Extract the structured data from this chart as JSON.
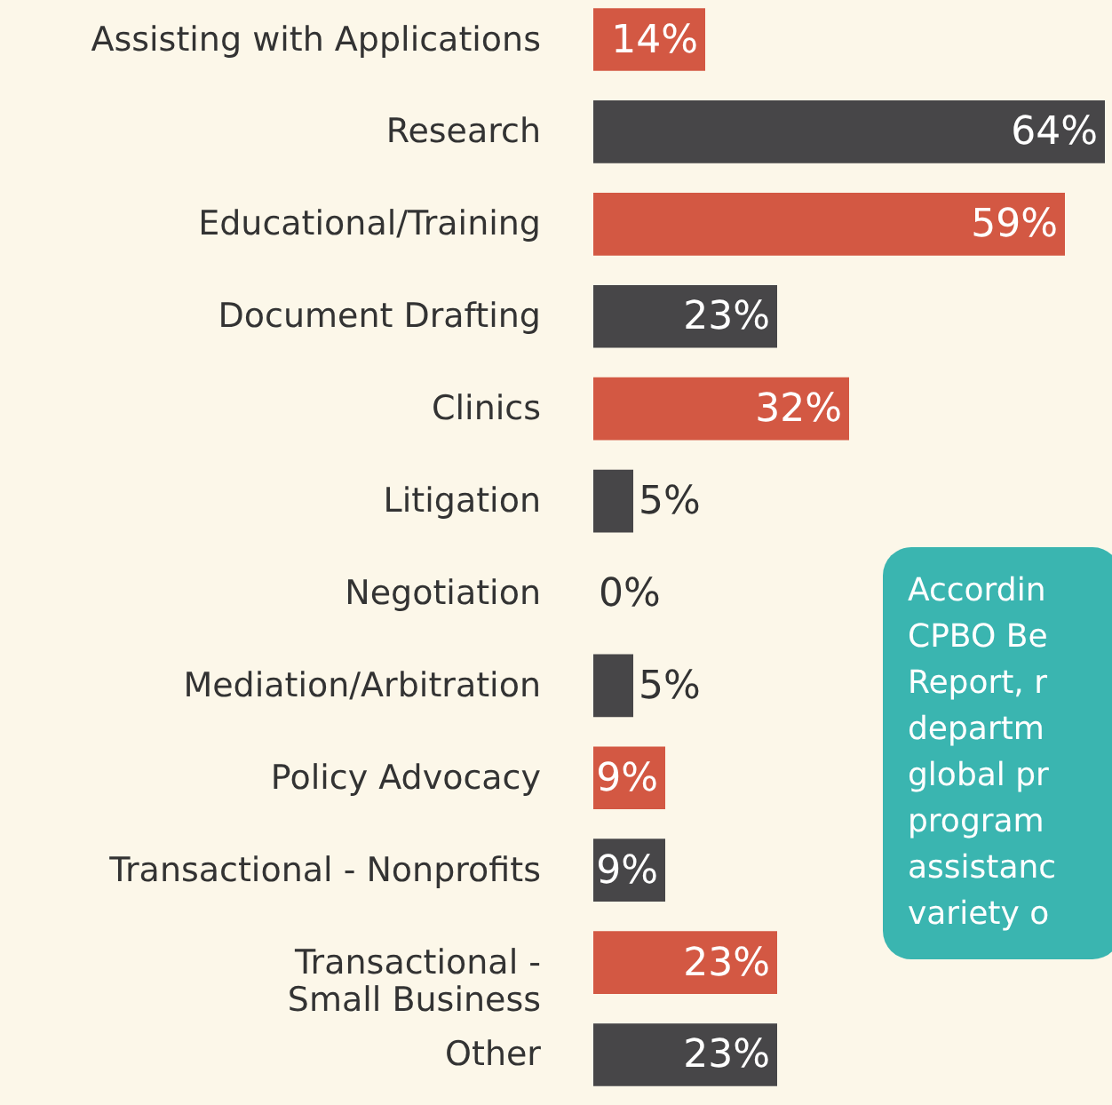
{
  "chart_data": {
    "type": "bar",
    "orientation": "horizontal",
    "categories": [
      "Assisting with Applications",
      "Research",
      "Educational/Training",
      "Document Drafting",
      "Clinics",
      "Litigation",
      "Negotiation",
      "Mediation/Arbitration",
      "Policy Advocacy",
      "Transactional - Nonprofits",
      "Transactional - Small Business",
      "Other"
    ],
    "values": [
      14,
      64,
      59,
      23,
      32,
      5,
      0,
      5,
      9,
      9,
      23,
      23
    ],
    "colors": [
      "#d35843",
      "#474648",
      "#d35843",
      "#474648",
      "#d35843",
      "#474648",
      "#d35843",
      "#474648",
      "#d35843",
      "#474648",
      "#d35843",
      "#474648"
    ],
    "value_labels": [
      "14%",
      "64%",
      "59%",
      "23%",
      "32%",
      "5%",
      "0%",
      "5%",
      "9%",
      "9%",
      "23%",
      "23%"
    ],
    "annotations": [
      "Accordin\nCPBO Be\nReport, r\ndepartm\nglobal pr\nprogram\nassistanc\nvariety o"
    ]
  }
}
